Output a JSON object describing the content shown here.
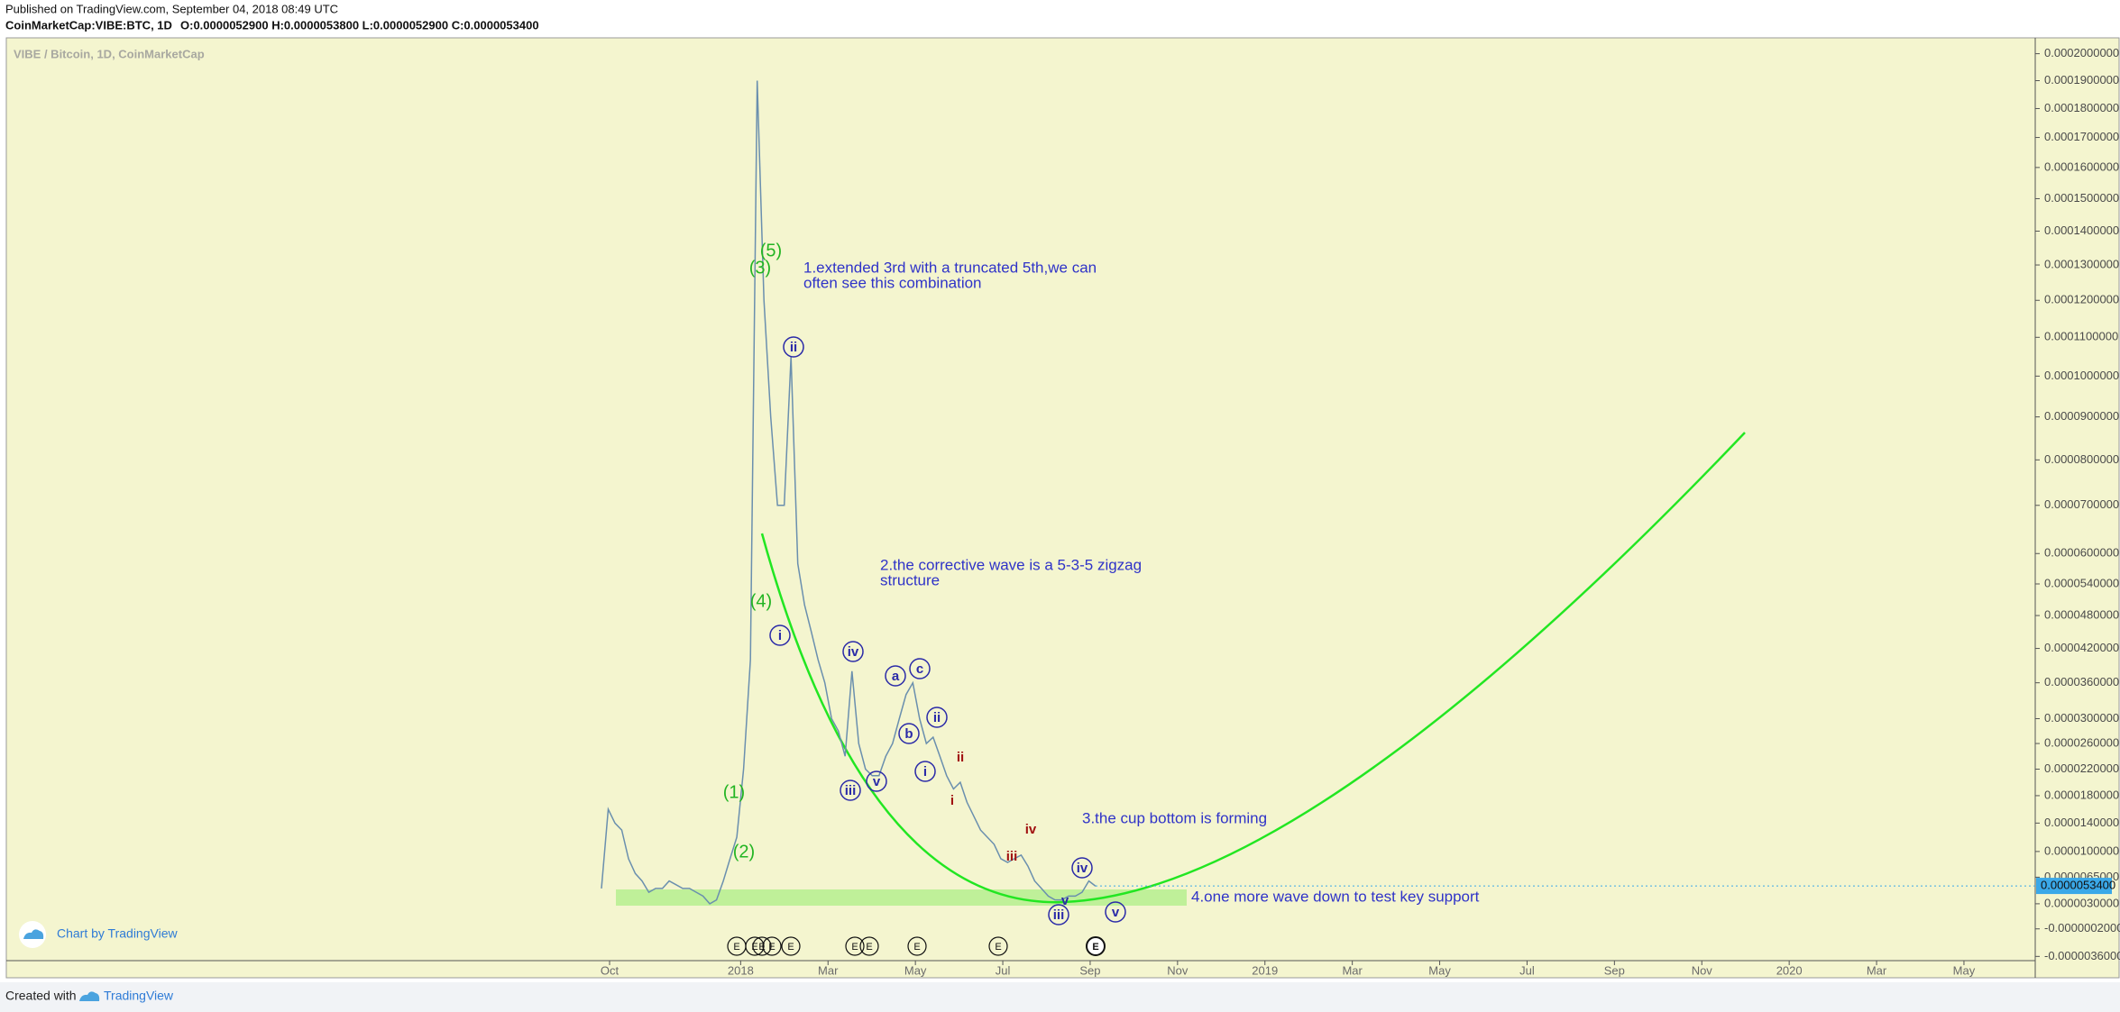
{
  "header": {
    "published": "Published on TradingView.com, September 04, 2018 08:49 UTC",
    "symbol": "CoinMarketCap:VIBE:BTC, 1D",
    "ohlc": "O:0.0000052900 H:0.0000053800 L:0.0000052900 C:0.0000053400"
  },
  "chart_data": {
    "type": "line",
    "title": "VIBE / Bitcoin, 1D, CoinMarketCap",
    "color": "#6a8fae",
    "log_scale": true,
    "values": [
      5e-06,
      1.6e-05,
      1.4e-05,
      1.3e-05,
      9e-06,
      7e-06,
      6e-06,
      4.5e-06,
      5e-06,
      5e-06,
      6e-06,
      5.5e-06,
      5e-06,
      5e-06,
      4.5e-06,
      4e-06,
      3e-06,
      3.5e-06,
      6e-06,
      9e-06,
      1.2e-05,
      2.2e-05,
      4e-05,
      0.00019,
      0.00012,
      9e-05,
      7e-05,
      7e-05,
      0.000105,
      5.8e-05,
      5e-05,
      4.5e-05,
      4e-05,
      3.6e-05,
      3e-05,
      2.8e-05,
      2.4e-05,
      3.8e-05,
      2.6e-05,
      2.2e-05,
      2.1e-05,
      2.1e-05,
      2.4e-05,
      2.6e-05,
      3e-05,
      3.4e-05,
      3.6e-05,
      3e-05,
      2.6e-05,
      2.7e-05,
      2.4e-05,
      2.1e-05,
      1.9e-05,
      2e-05,
      1.7e-05,
      1.5e-05,
      1.3e-05,
      1.2e-05,
      1.1e-05,
      9e-06,
      8.5e-06,
      9e-06,
      9.5e-06,
      8e-06,
      6e-06,
      5e-06,
      4e-06,
      3.5e-06,
      3.5e-06,
      4e-06,
      4e-06,
      4.5e-06,
      6e-06,
      5.3e-06
    ],
    "ylim": [
      -4e-06,
      0.000205
    ],
    "yticks": [
      {
        "value": 0.0002,
        "label": "0.0002000000"
      },
      {
        "value": 0.00019,
        "label": "0.0001900000"
      },
      {
        "value": 0.00018,
        "label": "0.0001800000"
      },
      {
        "value": 0.00017,
        "label": "0.0001700000"
      },
      {
        "value": 0.00016,
        "label": "0.0001600000"
      },
      {
        "value": 0.00015,
        "label": "0.0001500000"
      },
      {
        "value": 0.00014,
        "label": "0.0001400000"
      },
      {
        "value": 0.00013,
        "label": "0.0001300000"
      },
      {
        "value": 0.00012,
        "label": "0.0001200000"
      },
      {
        "value": 0.00011,
        "label": "0.0001100000"
      },
      {
        "value": 0.0001,
        "label": "0.0001000000"
      },
      {
        "value": 9e-05,
        "label": "0.0000900000"
      },
      {
        "value": 8e-05,
        "label": "0.0000800000"
      },
      {
        "value": 7e-05,
        "label": "0.0000700000"
      },
      {
        "value": 6e-05,
        "label": "0.0000600000"
      },
      {
        "value": 5.4e-05,
        "label": "0.0000540000"
      },
      {
        "value": 4.8e-05,
        "label": "0.0000480000"
      },
      {
        "value": 4.2e-05,
        "label": "0.0000420000"
      },
      {
        "value": 3.6e-05,
        "label": "0.0000360000"
      },
      {
        "value": 3e-05,
        "label": "0.0000300000"
      },
      {
        "value": 2.6e-05,
        "label": "0.0000260000"
      },
      {
        "value": 2.2e-05,
        "label": "0.0000220000"
      },
      {
        "value": 1.8e-05,
        "label": "0.0000180000"
      },
      {
        "value": 1.4e-05,
        "label": "0.0000140000"
      },
      {
        "value": 1e-05,
        "label": "0.0000100000"
      },
      {
        "value": 6.5e-06,
        "label": "0.0000065000"
      },
      {
        "value": 3e-06,
        "label": "0.0000030000"
      },
      {
        "value": -2e-07,
        "label": "-0.0000002000"
      },
      {
        "value": -3.6e-06,
        "label": "-0.0000036000"
      }
    ],
    "xticks": [
      "Oct",
      "2018",
      "Mar",
      "May",
      "Jul",
      "Sep",
      "Nov",
      "2019",
      "Mar",
      "May",
      "Jul",
      "Sep",
      "Nov",
      "2020",
      "Mar",
      "May"
    ],
    "last_price": {
      "value": 5.34e-06,
      "label": "0.0000053400"
    },
    "annotations": {
      "waves_green": [
        "(5)",
        "(3)",
        "(4)",
        "(1)",
        "(2)"
      ],
      "waves_circled": [
        "ii",
        "i",
        "iv",
        "iii",
        "v",
        "a",
        "b",
        "c",
        "i",
        "ii",
        "iv",
        "iii",
        "v"
      ],
      "waves_red": [
        "ii",
        "i",
        "iv",
        "iii",
        "v"
      ],
      "notes": [
        [
          "1.extended 3rd with a truncated 5th,we can",
          "often see this combination"
        ],
        [
          "2.the corrective wave is a 5-3-5 zigzag",
          "structure"
        ],
        [
          "3.the cup bottom is forming"
        ],
        [
          "4.one more wave down to test key support"
        ]
      ],
      "events": [
        "E",
        "E",
        "E",
        "E",
        "E",
        "E",
        "E",
        "E",
        "E",
        "E"
      ]
    }
  },
  "footer": {
    "chart_by": "Chart by TradingView",
    "created_with": "Created with",
    "brand": "TradingView"
  }
}
